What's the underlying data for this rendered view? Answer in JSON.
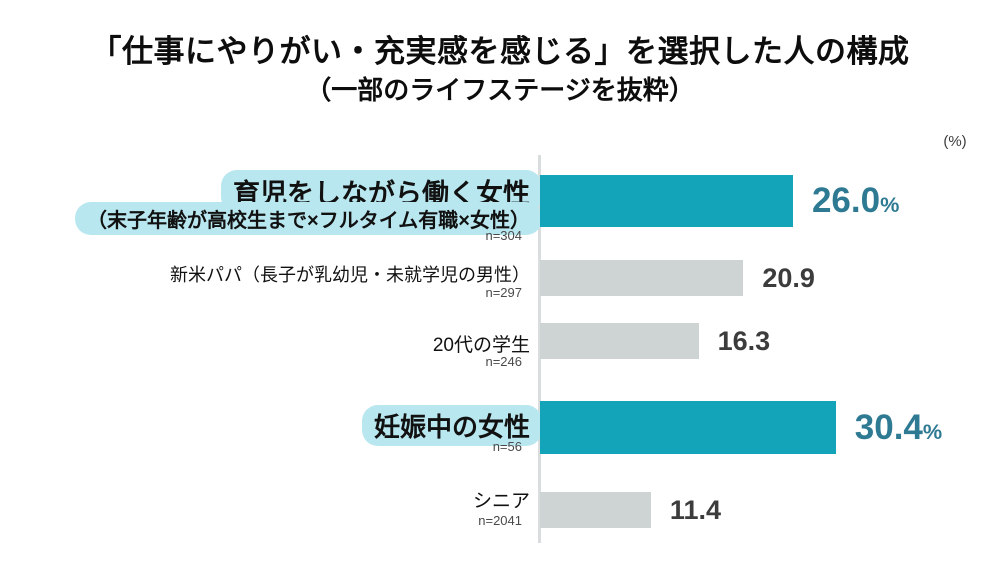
{
  "header": {
    "title": "「仕事にやりがい・充実感を感じる」を選択した人の構成",
    "subtitle": "（一部のライフステージを抜粋）"
  },
  "chart_data": {
    "type": "bar",
    "orientation": "horizontal",
    "title": "「仕事にやりがい・充実感を感じる」を選択した人の構成",
    "subtitle": "（一部のライフステージを抜粋）",
    "unit_label": "(%)",
    "xlim": [
      0,
      40
    ],
    "grid": false,
    "legend": false,
    "categories": [
      "育児をしながら働く女性（末子年齢が高校生まで×フルタイム有職×女性）",
      "新米パパ（長子が乳幼児・未就学児の男性）",
      "20代の学生",
      "妊娠中の女性",
      "シニア"
    ],
    "values": [
      26.0,
      20.9,
      16.3,
      30.4,
      11.4
    ],
    "rows": [
      {
        "label_line1": "育児をしながら働く女性",
        "label_line2": "（末子年齢が高校生まで×フルタイム有職×女性）",
        "n_label": "n=304",
        "value": 26.0,
        "value_label": "26.0",
        "percent_suffix": "%",
        "emphasized": true
      },
      {
        "label_line1": "新米パパ（長子が乳幼児・未就学児の男性）",
        "label_line2": "",
        "n_label": "n=297",
        "value": 20.9,
        "value_label": "20.9",
        "percent_suffix": "",
        "emphasized": false
      },
      {
        "label_line1": "20代の学生",
        "label_line2": "",
        "n_label": "n=246",
        "value": 16.3,
        "value_label": "16.3",
        "percent_suffix": "",
        "emphasized": false
      },
      {
        "label_line1": "妊娠中の女性",
        "label_line2": "",
        "n_label": "n=56",
        "value": 30.4,
        "value_label": "30.4",
        "percent_suffix": "%",
        "emphasized": true
      },
      {
        "label_line1": "シニア",
        "label_line2": "",
        "n_label": "n=2041",
        "value": 11.4,
        "value_label": "11.4",
        "percent_suffix": "",
        "emphasized": false
      }
    ],
    "colors": {
      "bar_emphasized": "#14a4ba",
      "bar_default": "#ced3d4",
      "value_emphasized": "#2f7a93",
      "value_default": "#3c3c3c",
      "label_highlight": "#b9e7ef",
      "axis": "#d9dddd"
    }
  }
}
